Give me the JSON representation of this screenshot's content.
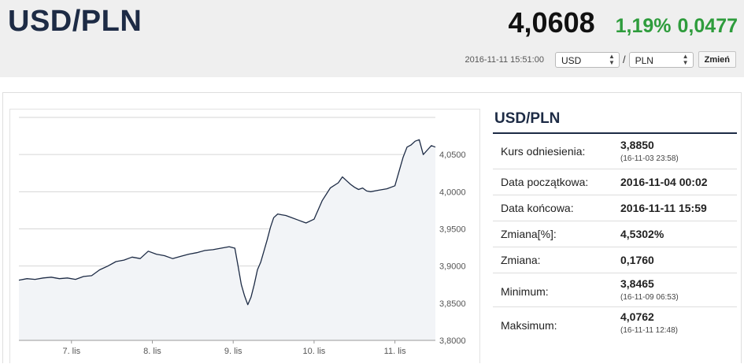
{
  "header": {
    "pair": "USD/PLN",
    "rate": "4,0608",
    "change_pct": "1,19%",
    "change_abs": "0,0477",
    "timestamp": "2016-11-11 15:51:00",
    "from_currency": "USD",
    "separator": "/",
    "to_currency": "PLN",
    "change_button": "Zmień",
    "positive_color": "#2e9c3c"
  },
  "stats": {
    "title": "USD/PLN",
    "rows": [
      {
        "label": "Kurs odniesienia:",
        "value": "3,8850",
        "sub": "(16-11-03 23:58)"
      },
      {
        "label": "Data początkowa:",
        "value": "2016-11-04 00:02",
        "sub": ""
      },
      {
        "label": "Data końcowa:",
        "value": "2016-11-11 15:59",
        "sub": ""
      },
      {
        "label": "Zmiana[%]:",
        "value": "4,5302%",
        "sub": ""
      },
      {
        "label": "Zmiana:",
        "value": "0,1760",
        "sub": ""
      },
      {
        "label": "Minimum:",
        "value": "3,8465",
        "sub": "(16-11-09 06:53)"
      },
      {
        "label": "Maksimum:",
        "value": "4,0762",
        "sub": "(16-11-11 12:48)"
      }
    ]
  },
  "chart_data": {
    "type": "area",
    "ylim": [
      3.8,
      4.1
    ],
    "xlim": [
      6.35,
      11.5
    ],
    "y_ticks": [
      3.8,
      3.85,
      3.9,
      3.95,
      4.0,
      4.05
    ],
    "y_tick_labels": [
      "3,8000",
      "3,8500",
      "3,9000",
      "3,9500",
      "4,0000",
      "4,0500"
    ],
    "x_ticks": [
      7,
      8,
      9,
      10,
      11
    ],
    "x_tick_labels": [
      "7. lis",
      "8. lis",
      "9. lis",
      "10. lis",
      "11. lis"
    ],
    "grid": true,
    "line_color": "#1d2b45",
    "fill_color": "#f2f4f7",
    "series": [
      {
        "x": [
          6.35,
          6.45,
          6.55,
          6.65,
          6.75,
          6.85,
          6.95,
          7.05,
          7.15,
          7.25,
          7.35,
          7.45,
          7.55,
          7.65,
          7.75,
          7.85,
          7.95,
          8.05,
          8.15,
          8.25,
          8.35,
          8.45,
          8.55,
          8.65,
          8.75,
          8.85,
          8.95,
          9.02,
          9.06,
          9.1,
          9.14,
          9.18,
          9.22,
          9.26,
          9.3,
          9.34,
          9.38,
          9.42,
          9.46,
          9.5,
          9.55,
          9.6,
          9.65,
          9.7,
          9.8,
          9.9,
          10.0,
          10.1,
          10.2,
          10.3,
          10.35,
          10.4,
          10.45,
          10.5,
          10.55,
          10.6,
          10.65,
          10.7,
          10.8,
          10.9,
          11.0,
          11.1,
          11.15,
          11.2,
          11.25,
          11.3,
          11.35,
          11.4,
          11.45,
          11.5
        ],
        "y": [
          3.881,
          3.883,
          3.882,
          3.884,
          3.885,
          3.883,
          3.884,
          3.882,
          3.886,
          3.887,
          3.895,
          3.9,
          3.906,
          3.908,
          3.912,
          3.91,
          3.92,
          3.916,
          3.914,
          3.91,
          3.913,
          3.916,
          3.918,
          3.921,
          3.922,
          3.924,
          3.926,
          3.924,
          3.9,
          3.875,
          3.86,
          3.848,
          3.858,
          3.875,
          3.895,
          3.905,
          3.92,
          3.935,
          3.952,
          3.965,
          3.97,
          3.969,
          3.968,
          3.966,
          3.962,
          3.958,
          3.963,
          3.988,
          4.005,
          4.012,
          4.02,
          4.015,
          4.01,
          4.006,
          4.003,
          4.005,
          4.001,
          4.0,
          4.002,
          4.004,
          4.008,
          4.046,
          4.06,
          4.063,
          4.068,
          4.07,
          4.05,
          4.056,
          4.062,
          4.06
        ]
      }
    ]
  }
}
